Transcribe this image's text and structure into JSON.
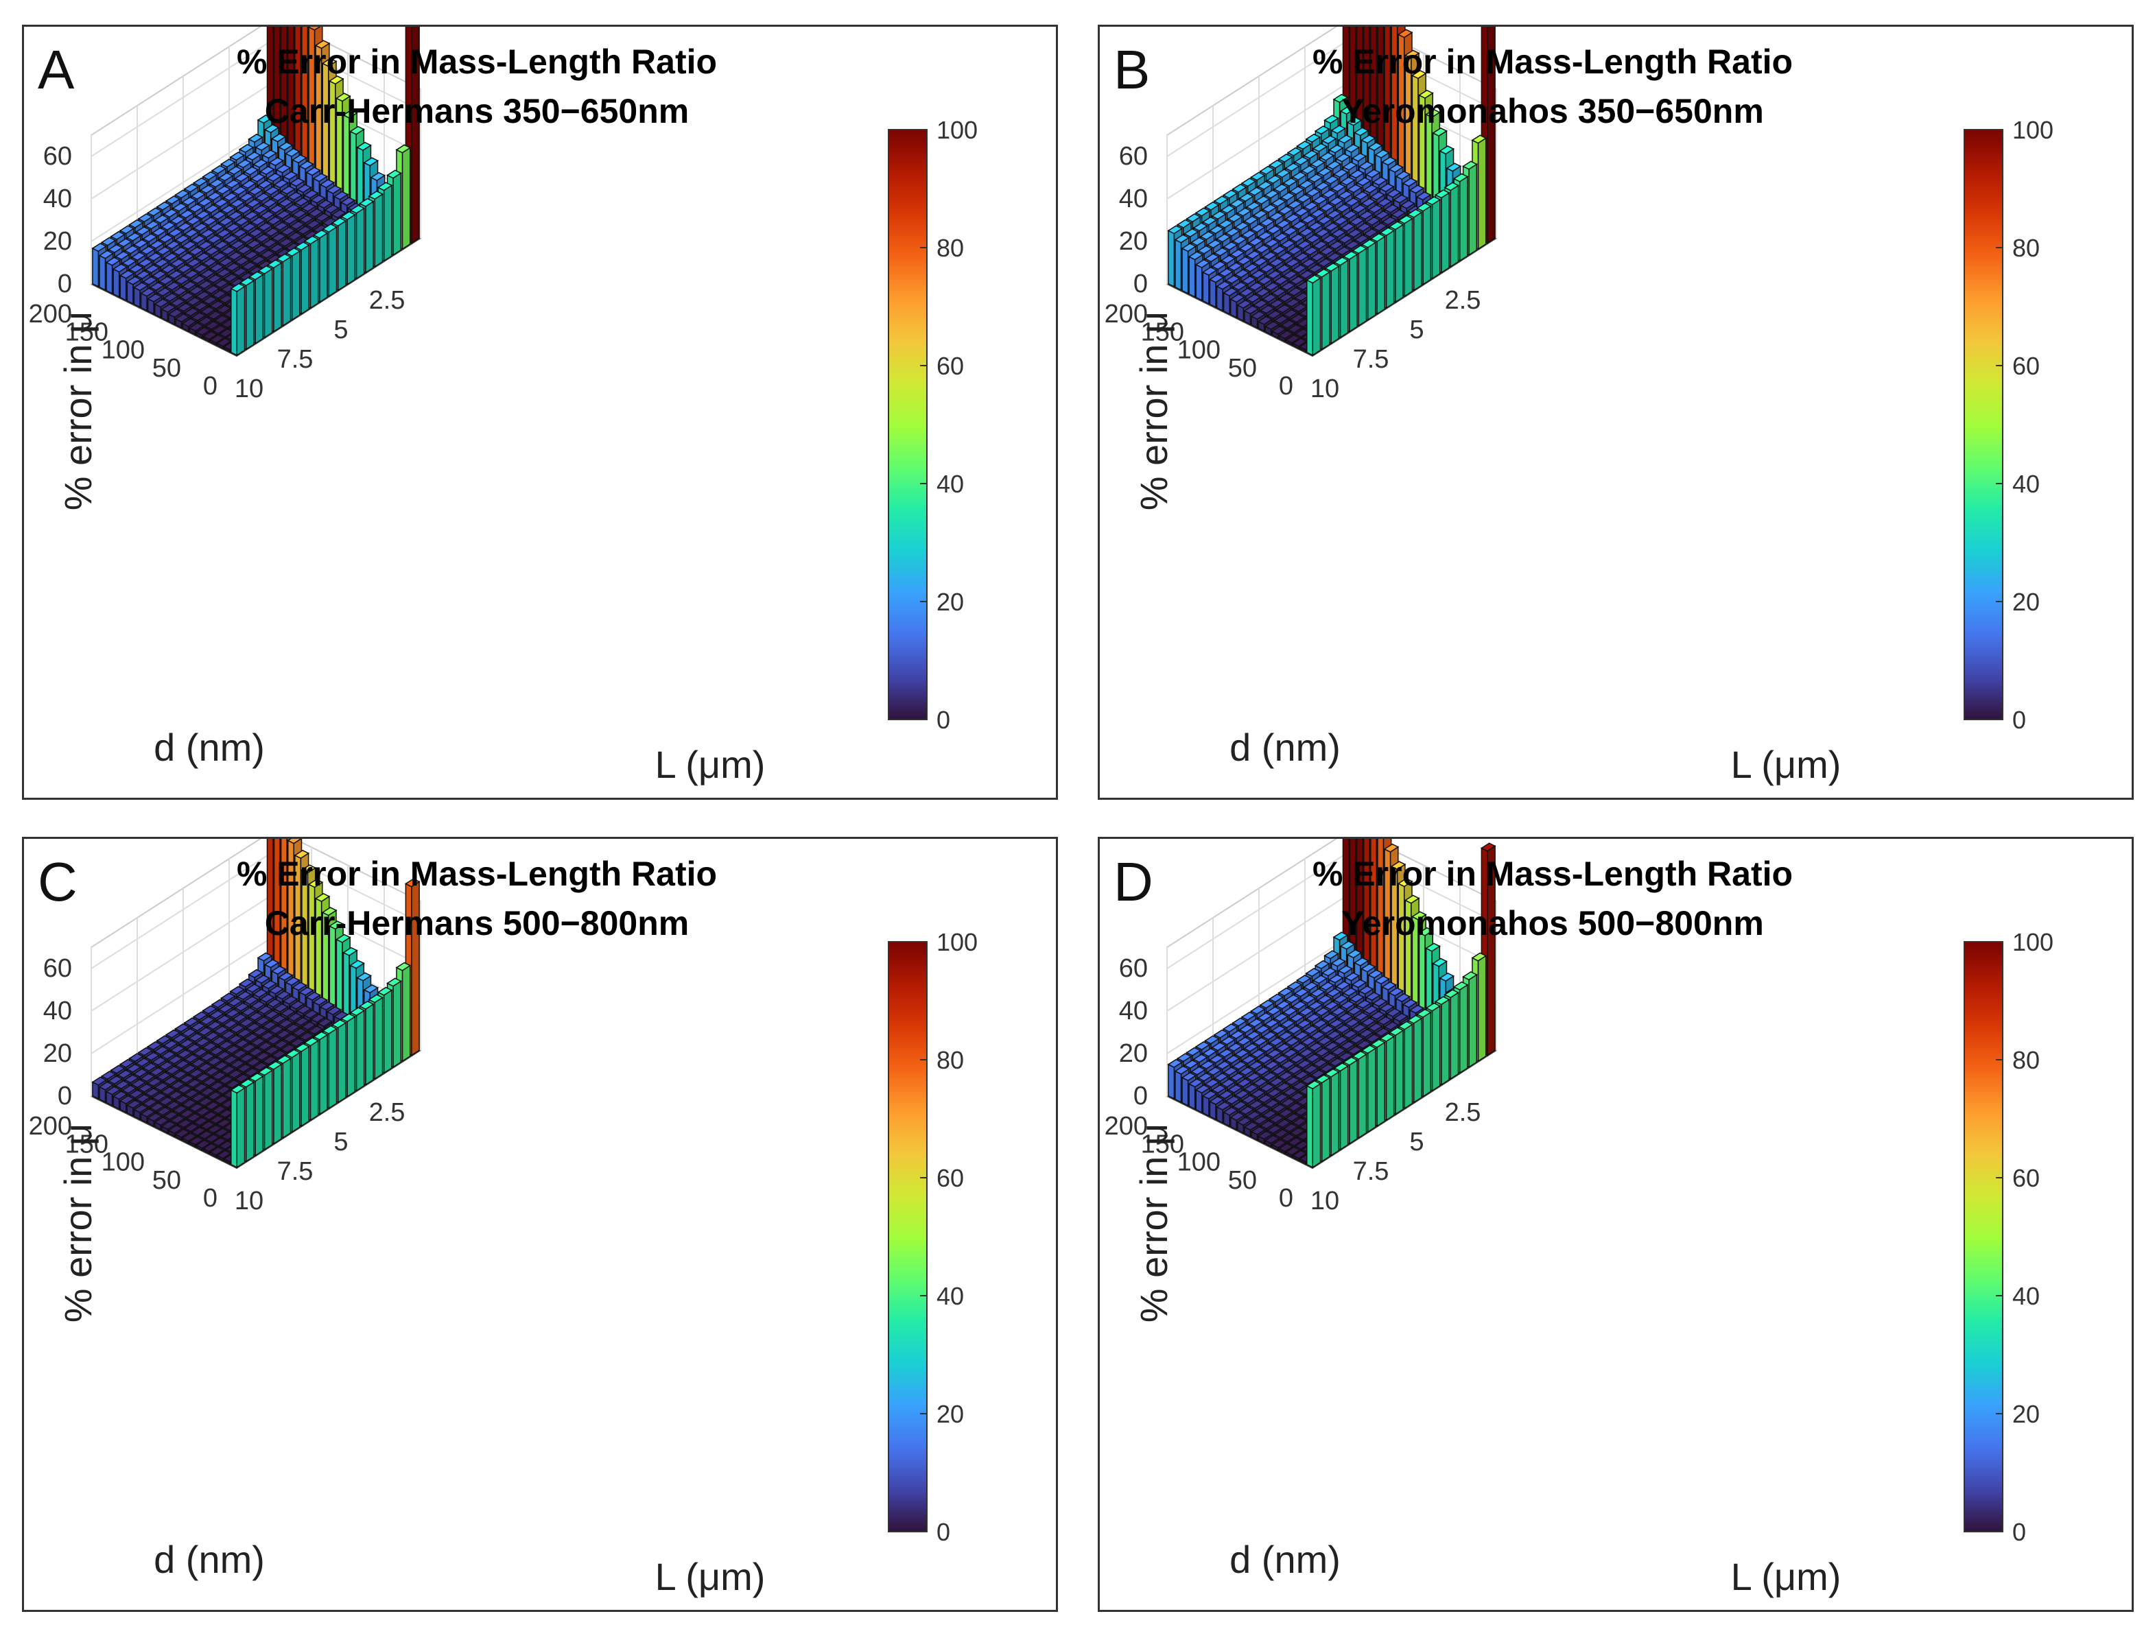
{
  "figure": {
    "panels": [
      {
        "letter": "A",
        "title_line1": "% Error in Mass-Length Ratio",
        "title_line2": "Carr-Hermans 350−650nm"
      },
      {
        "letter": "B",
        "title_line1": "% Error in Mass-Length Ratio",
        "title_line2": "Yeromonahos 350−650nm"
      },
      {
        "letter": "C",
        "title_line1": "% Error in Mass-Length Ratio",
        "title_line2": "Carr-Hermans 500−800nm"
      },
      {
        "letter": "D",
        "title_line1": "% Error in Mass-Length Ratio",
        "title_line2": "Yeromonahos 500−800nm"
      }
    ]
  },
  "colormap": [
    "#30123b",
    "#4145ab",
    "#4675ed",
    "#39a2fc",
    "#1bcfd4",
    "#24eca6",
    "#61fc6c",
    "#a4fc3b",
    "#d1e834",
    "#f3c63a",
    "#fe9b2d",
    "#f36315",
    "#d93806",
    "#b11901",
    "#7a0403"
  ],
  "chart_data": [
    {
      "type": "bar3d",
      "title": "% Error in Mass-Length Ratio\nCarr-Hermans 350−650nm",
      "zlabel": "% error in μ",
      "xlabel": "L (μm)",
      "ylabel": "d (nm)",
      "zticks": [
        "0",
        "20",
        "40",
        "60"
      ],
      "zlim": [
        0,
        70
      ],
      "xticks": [
        "2.5",
        "5",
        "7.5",
        "10"
      ],
      "xlim": [
        0,
        10
      ],
      "yticks": [
        "0",
        "50",
        "100",
        "150",
        "200"
      ],
      "ylim": [
        0,
        200
      ],
      "colorbar": {
        "ticks": [
          "0",
          "20",
          "40",
          "60",
          "80",
          "100"
        ],
        "range": [
          0,
          100
        ]
      },
      "surface_params": {
        "low_d_low_L": 60,
        "low_d_high_L": 30,
        "high_d_low_L": 40,
        "high_d_high_L": 18,
        "floor": 1
      }
    },
    {
      "type": "bar3d",
      "title": "% Error in Mass-Length Ratio\nYeromonahos 350−650nm",
      "zlabel": "% error in μ",
      "xlabel": "L (μm)",
      "ylabel": "d (nm)",
      "zticks": [
        "0",
        "20",
        "40",
        "60"
      ],
      "zlim": [
        0,
        70
      ],
      "xticks": [
        "2.5",
        "5",
        "7.5",
        "10"
      ],
      "xlim": [
        0,
        10
      ],
      "yticks": [
        "0",
        "50",
        "100",
        "150",
        "200"
      ],
      "ylim": [
        0,
        200
      ],
      "colorbar": {
        "ticks": [
          "0",
          "20",
          "40",
          "60",
          "80",
          "100"
        ],
        "range": [
          0,
          100
        ]
      },
      "surface_params": {
        "low_d_low_L": 65,
        "low_d_high_L": 34,
        "high_d_low_L": 52,
        "high_d_high_L": 27,
        "floor": 1
      }
    },
    {
      "type": "bar3d",
      "title": "% Error in Mass-Length Ratio\nCarr-Hermans 500−800nm",
      "zlabel": "% error in μ",
      "xlabel": "L (μm)",
      "ylabel": "d (nm)",
      "zticks": [
        "0",
        "20",
        "40",
        "60"
      ],
      "zlim": [
        0,
        70
      ],
      "xticks": [
        "2.5",
        "5",
        "7.5",
        "10"
      ],
      "xlim": [
        0,
        10
      ],
      "yticks": [
        "0",
        "50",
        "100",
        "150",
        "200"
      ],
      "ylim": [
        0,
        200
      ],
      "colorbar": {
        "ticks": [
          "0",
          "20",
          "40",
          "60",
          "80",
          "100"
        ],
        "range": [
          0,
          100
        ]
      },
      "surface_params": {
        "low_d_low_L": 50,
        "low_d_high_L": 35,
        "high_d_low_L": 25,
        "high_d_high_L": 7,
        "floor": 1
      }
    },
    {
      "type": "bar3d",
      "title": "% Error in Mass-Length Ratio\nYeromonahos 500−800nm",
      "zlabel": "% error in μ",
      "xlabel": "L (μm)",
      "ylabel": "d (nm)",
      "zticks": [
        "0",
        "20",
        "40",
        "60"
      ],
      "zlim": [
        0,
        70
      ],
      "xticks": [
        "2.5",
        "5",
        "7.5",
        "10"
      ],
      "xlim": [
        0,
        10
      ],
      "yticks": [
        "0",
        "50",
        "100",
        "150",
        "200"
      ],
      "ylim": [
        0,
        200
      ],
      "colorbar": {
        "ticks": [
          "0",
          "20",
          "40",
          "60",
          "80",
          "100"
        ],
        "range": [
          0,
          100
        ]
      },
      "surface_params": {
        "low_d_low_L": 57,
        "low_d_high_L": 37,
        "high_d_low_L": 37,
        "high_d_high_L": 16,
        "floor": 1
      }
    }
  ]
}
